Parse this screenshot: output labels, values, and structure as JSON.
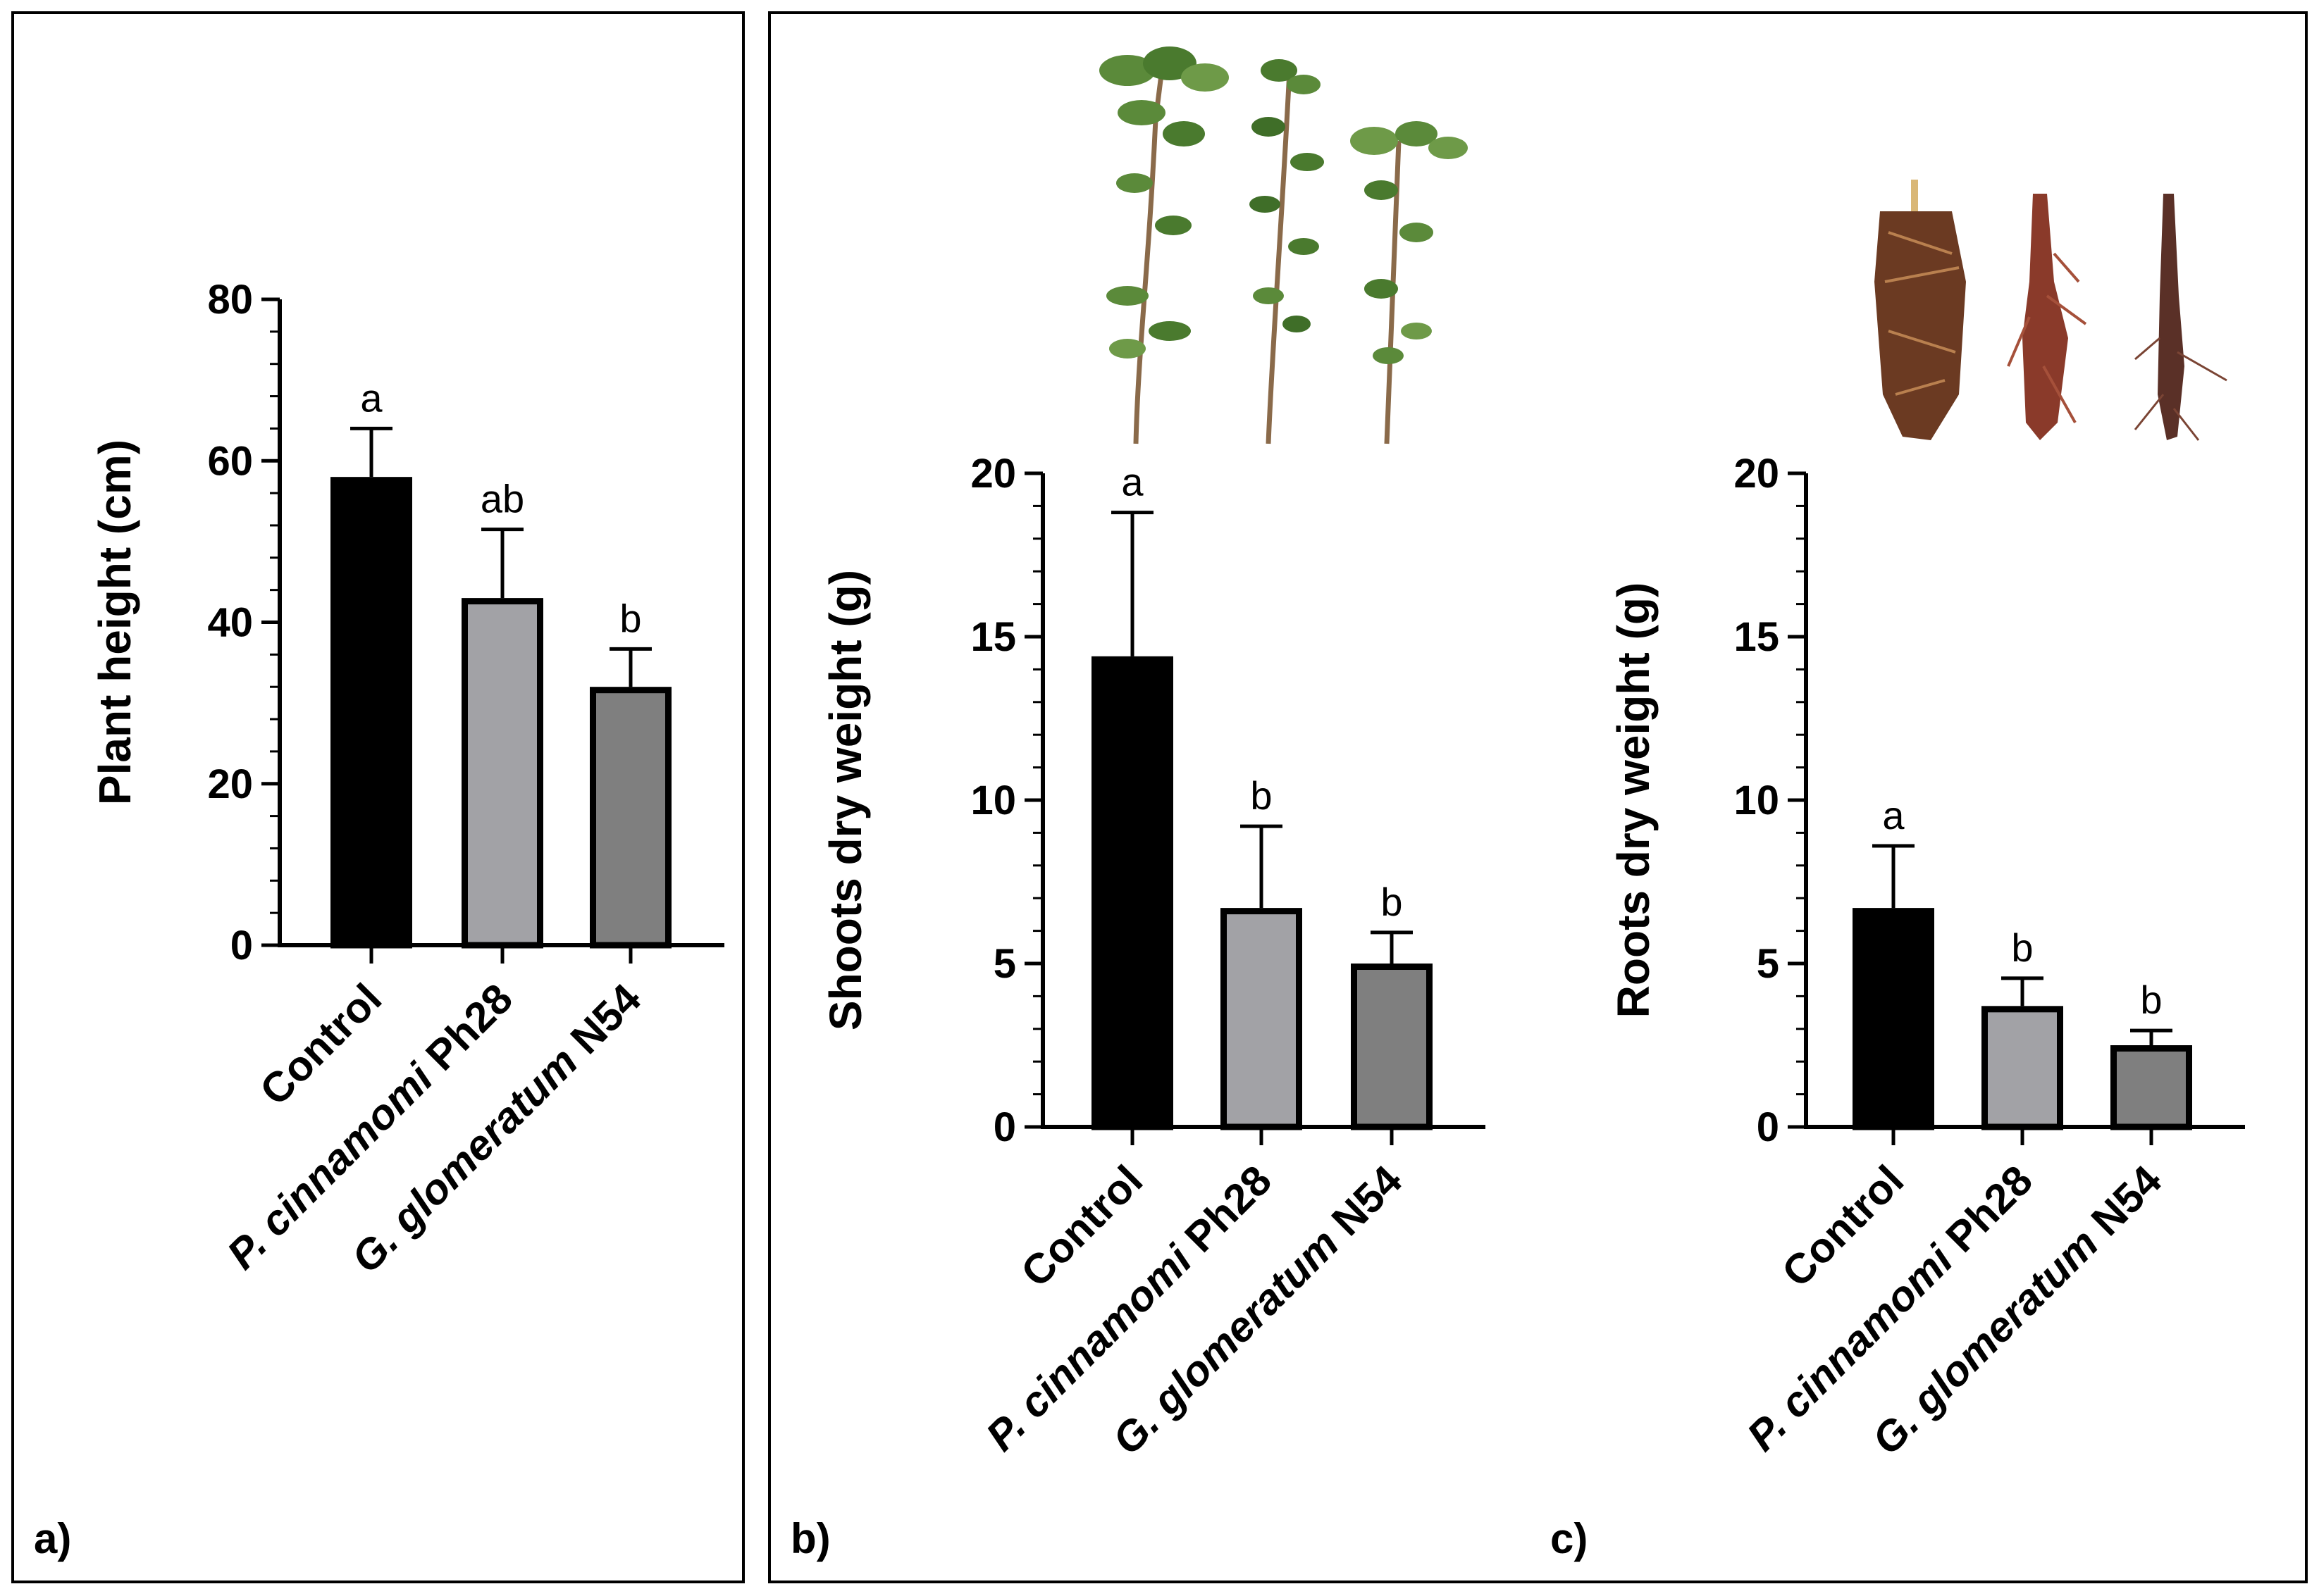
{
  "panel_labels": [
    "a)",
    "b)",
    "c)"
  ],
  "colors": {
    "control": "#000000",
    "pcinnamomi": "#a2a2a6",
    "gglomeratum": "#7f7f7f",
    "outline": "#000000"
  },
  "photos": {
    "shoots": "seedling-shoots-photo",
    "roots": "seedling-roots-photo"
  },
  "chart_data": [
    {
      "type": "bar",
      "panel": "a)",
      "ylabel": "Plant height (cm)",
      "ylim": [
        0,
        80
      ],
      "yticks": [
        0,
        20,
        40,
        60,
        80
      ],
      "categories": [
        {
          "normal_before": "",
          "italic": "",
          "normal_after": "Control"
        },
        {
          "normal_before": "",
          "italic": "P. cinnamomi",
          "normal_after": " Ph28"
        },
        {
          "normal_before": "",
          "italic": "G. glomeratum",
          "normal_after": " N54"
        }
      ],
      "values": [
        58,
        43,
        32
      ],
      "errors": [
        6,
        8.5,
        4.7
      ],
      "significance": [
        "a",
        "ab",
        "b"
      ]
    },
    {
      "type": "bar",
      "panel": "b)",
      "ylabel": "Shoots dry weight (g)",
      "ylim": [
        0,
        20
      ],
      "yticks": [
        0,
        5,
        10,
        15,
        20
      ],
      "categories": [
        {
          "normal_before": "",
          "italic": "",
          "normal_after": "Control"
        },
        {
          "normal_before": "",
          "italic": "P. cinnamomi",
          "normal_after": " Ph28"
        },
        {
          "normal_before": "",
          "italic": "G. glomeratum",
          "normal_after": " N54"
        }
      ],
      "values": [
        14.4,
        6.7,
        5.0
      ],
      "errors": [
        4.4,
        2.5,
        0.95
      ],
      "significance": [
        "a",
        "b",
        "b"
      ]
    },
    {
      "type": "bar",
      "panel": "c)",
      "ylabel": "Roots dry weight (g)",
      "ylim": [
        0,
        20
      ],
      "yticks": [
        0,
        5,
        10,
        15,
        20
      ],
      "categories": [
        {
          "normal_before": "",
          "italic": "",
          "normal_after": "Control"
        },
        {
          "normal_before": "",
          "italic": "P. cinnamomi",
          "normal_after": " Ph28"
        },
        {
          "normal_before": "",
          "italic": "G. glomeratum",
          "normal_after": " N54"
        }
      ],
      "values": [
        6.7,
        3.7,
        2.5
      ],
      "errors": [
        1.9,
        0.85,
        0.45
      ],
      "significance": [
        "a",
        "b",
        "b"
      ]
    }
  ]
}
